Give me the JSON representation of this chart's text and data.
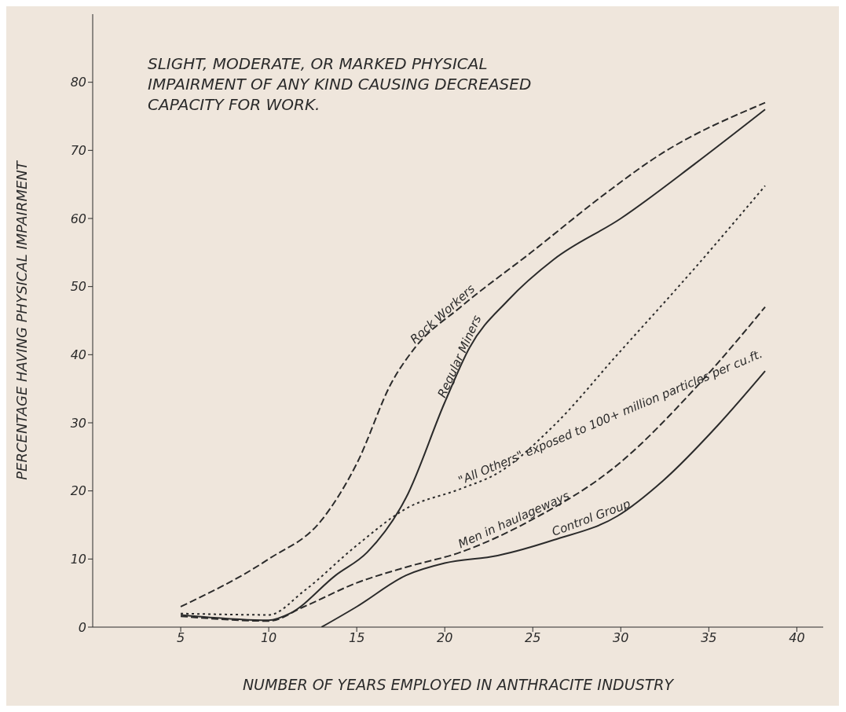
{
  "chart_data": {
    "type": "line",
    "title": "SLIGHT, MODERATE, OR MARKED PHYSICAL IMPAIRMENT OF ANY KIND CAUSING DECREASED CAPACITY FOR WORK.",
    "xlabel": "NUMBER OF YEARS EMPLOYED IN ANTHRACITE INDUSTRY",
    "ylabel": "PERCENTAGE HAVING PHYSICAL IMPAIRMENT",
    "xlim": [
      0,
      41.5
    ],
    "ylim": [
      0,
      90
    ],
    "xticks": [
      5,
      10,
      15,
      20,
      25,
      30,
      35,
      40
    ],
    "yticks": [
      0,
      10,
      20,
      30,
      40,
      50,
      60,
      70,
      80
    ],
    "grid": false,
    "legend": false,
    "marker": "none",
    "series": [
      {
        "name": "Rock Workers",
        "color": "#2b2b2b",
        "line_style": "dashed",
        "x": [
          5,
          10,
          13,
          15,
          17,
          18.3,
          20.9,
          24.9,
          29.3,
          32,
          38.2
        ],
        "values": [
          3,
          10,
          15.7,
          24,
          36,
          41,
          47,
          55,
          64,
          69,
          77
        ]
      },
      {
        "name": "Regular Miners",
        "color": "#2b2b2b",
        "line_style": "solid",
        "x": [
          5,
          10,
          11.2,
          13.8,
          15.6,
          17.8,
          20,
          21.4,
          23.6,
          26.2,
          30,
          34.2,
          38.2
        ],
        "values": [
          1.8,
          1,
          2,
          7.6,
          11,
          19,
          33,
          41,
          48,
          54,
          60,
          68,
          76
        ]
      },
      {
        "name": "\"All Others\" exposed to 100+ million particles per cu.ft.",
        "color": "#2b2b2b",
        "line_style": "dotted",
        "x": [
          5,
          10,
          12,
          15,
          17.8,
          20.9,
          23,
          26.2,
          29.8,
          34.2,
          38.2
        ],
        "values": [
          2,
          1.8,
          5.3,
          12,
          17.4,
          20.3,
          22.6,
          29.6,
          40,
          52.7,
          64.8
        ]
      },
      {
        "name": "Men in haulageways",
        "color": "#2b2b2b",
        "line_style": "dashed",
        "x": [
          5,
          10,
          12,
          15,
          17.8,
          20.9,
          24.9,
          29.8,
          34.2,
          38.2
        ],
        "values": [
          1.6,
          0.9,
          3,
          6.5,
          8.8,
          11,
          15.7,
          23.8,
          35,
          47
        ]
      },
      {
        "name": "Control Group",
        "color": "#2b2b2b",
        "line_style": "solid",
        "x": [
          13,
          15,
          17.8,
          20,
          23,
          26.2,
          29.8,
          32.4,
          35.5,
          38.2
        ],
        "values": [
          0,
          3,
          7.6,
          9.4,
          10.5,
          12.8,
          16.3,
          21.5,
          29.6,
          37.6
        ]
      }
    ]
  }
}
